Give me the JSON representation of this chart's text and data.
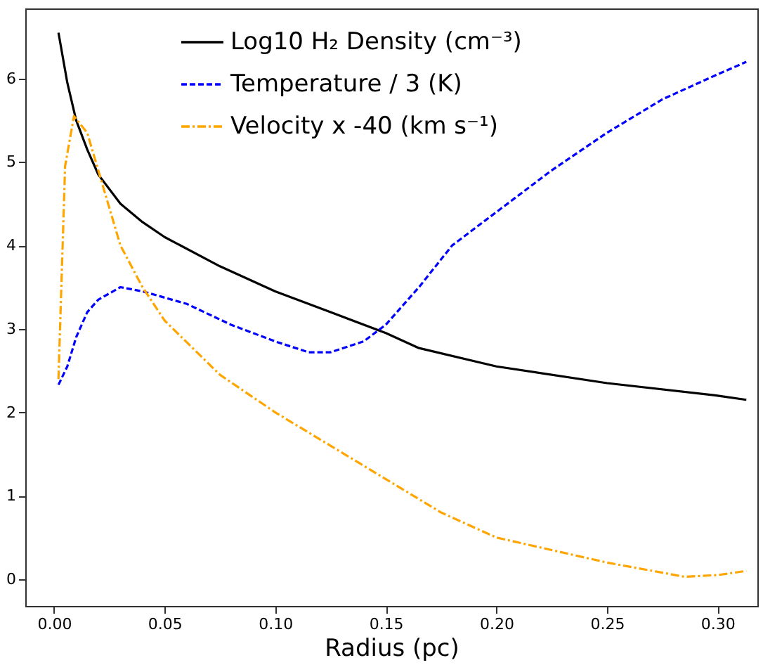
{
  "chart_data": {
    "type": "line",
    "xlabel": "Radius (pc)",
    "xlim": [
      -0.013,
      0.318
    ],
    "xticks": [
      {
        "value": 0,
        "label": "0.00"
      },
      {
        "value": 0.05,
        "label": "0.05"
      },
      {
        "value": 0.1,
        "label": "0.10"
      },
      {
        "value": 0.15,
        "label": "0.15"
      },
      {
        "value": 0.2,
        "label": "0.20"
      },
      {
        "value": 0.25,
        "label": "0.25"
      },
      {
        "value": 0.3,
        "label": "0.30"
      }
    ],
    "ylim": [
      -0.32,
      6.84
    ],
    "yticks": [
      0,
      1,
      2,
      3,
      4,
      5,
      6
    ],
    "legend": "top",
    "grid": false,
    "marker": "none",
    "series": [
      {
        "name": "Log10 H₂ Density (cm⁻³)",
        "color": "#000000",
        "line_style": "solid",
        "x": [
          0.002,
          0.006,
          0.01,
          0.015,
          0.02,
          0.03,
          0.04,
          0.05,
          0.075,
          0.1,
          0.125,
          0.15,
          0.165,
          0.2,
          0.25,
          0.3,
          0.313
        ],
        "values": [
          6.55,
          5.95,
          5.5,
          5.15,
          4.85,
          4.5,
          4.28,
          4.1,
          3.75,
          3.45,
          3.2,
          2.95,
          2.77,
          2.55,
          2.35,
          2.2,
          2.15
        ]
      },
      {
        "name": "Temperature / 3 (K)",
        "color": "#0000ff",
        "line_style": "dashed",
        "x": [
          0.002,
          0.006,
          0.01,
          0.015,
          0.02,
          0.03,
          0.04,
          0.06,
          0.08,
          0.1,
          0.115,
          0.125,
          0.14,
          0.15,
          0.165,
          0.18,
          0.2,
          0.225,
          0.25,
          0.275,
          0.3,
          0.313
        ],
        "values": [
          2.33,
          2.55,
          2.9,
          3.2,
          3.35,
          3.5,
          3.45,
          3.3,
          3.05,
          2.85,
          2.72,
          2.72,
          2.85,
          3.05,
          3.5,
          4.0,
          4.4,
          4.9,
          5.35,
          5.75,
          6.05,
          6.2
        ]
      },
      {
        "name": "Velocity x -40 (km s⁻¹)",
        "color": "#ffa500",
        "line_style": "dashdot",
        "x": [
          0.002,
          0.005,
          0.009,
          0.015,
          0.02,
          0.03,
          0.04,
          0.05,
          0.075,
          0.1,
          0.125,
          0.15,
          0.175,
          0.2,
          0.25,
          0.285,
          0.3,
          0.313
        ],
        "values": [
          2.4,
          4.95,
          5.55,
          5.35,
          4.9,
          4.0,
          3.5,
          3.1,
          2.45,
          2.0,
          1.6,
          1.2,
          0.8,
          0.5,
          0.2,
          0.03,
          0.05,
          0.1
        ]
      }
    ]
  }
}
